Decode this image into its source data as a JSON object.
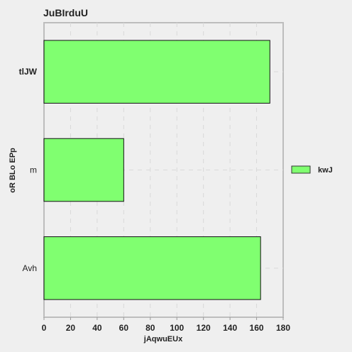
{
  "chart_data": {
    "type": "bar",
    "orientation": "horizontal",
    "title": "JuBIrduU",
    "xlabel": "jAqwuEUx",
    "ylabel": "oR BLo EPp",
    "categories": [
      "tlJW",
      "m",
      "Avh"
    ],
    "series": [
      {
        "name": "kwJ",
        "values": [
          170,
          60,
          163
        ],
        "color": "#80ff70"
      }
    ],
    "xlim": [
      0,
      180
    ],
    "xticks": [
      0,
      20,
      40,
      60,
      80,
      100,
      120,
      140,
      160,
      180
    ],
    "grid": true,
    "legend_position": "right"
  }
}
